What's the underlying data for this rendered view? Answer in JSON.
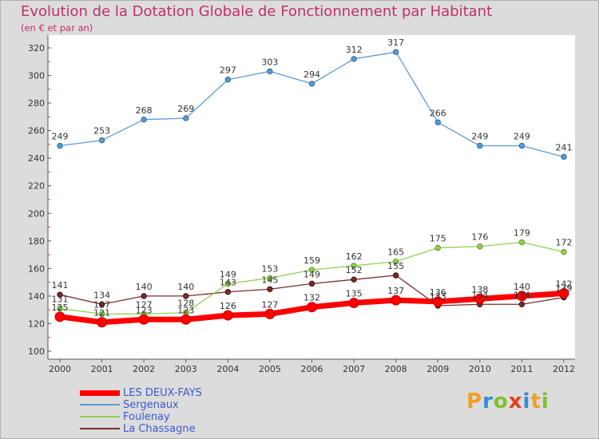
{
  "title": "Evolution de la Dotation Globale de Fonctionnement par Habitant",
  "subtitle": "(en € et par an)",
  "logo": {
    "letters": [
      "P",
      "r",
      "o",
      "x",
      "i",
      "t",
      "i"
    ],
    "colors": [
      "#f0a020",
      "#2d8fd5",
      "#7cbf30",
      "#e0401a",
      "#2d8fd5",
      "#f0a020",
      "#7cbf30"
    ]
  },
  "chart_data": {
    "type": "line",
    "title": "Evolution de la Dotation Globale de Fonctionnement par Habitant",
    "subtitle": "(en € et par an)",
    "xlabel": "",
    "ylabel": "",
    "x": [
      "2000",
      "2001",
      "2002",
      "2003",
      "2004",
      "2005",
      "2006",
      "2007",
      "2008",
      "2009",
      "2010",
      "2011",
      "2012"
    ],
    "ylim": [
      100,
      320
    ],
    "yticks": [
      100,
      120,
      140,
      160,
      180,
      200,
      220,
      240,
      260,
      280,
      300,
      320
    ],
    "grid": false,
    "legend": "bottom-left",
    "series": [
      {
        "name": "LES DEUX-FAYS",
        "color": "#ff0000",
        "values": [
          125,
          121,
          123,
          123,
          126,
          127,
          132,
          135,
          137,
          136,
          138,
          140,
          142
        ]
      },
      {
        "name": "Sergenaux",
        "color": "#5b9bd5",
        "values": [
          249,
          253,
          268,
          269,
          297,
          303,
          294,
          312,
          317,
          266,
          249,
          249,
          241
        ]
      },
      {
        "name": "Foulenay",
        "color": "#92d050",
        "values": [
          131,
          127,
          127,
          128,
          149,
          153,
          159,
          162,
          165,
          175,
          176,
          179,
          172
        ]
      },
      {
        "name": "La Chassagne",
        "color": "#7b2c2c",
        "values": [
          141,
          134,
          140,
          140,
          143,
          145,
          149,
          152,
          155,
          133,
          134,
          134,
          139
        ]
      }
    ]
  }
}
